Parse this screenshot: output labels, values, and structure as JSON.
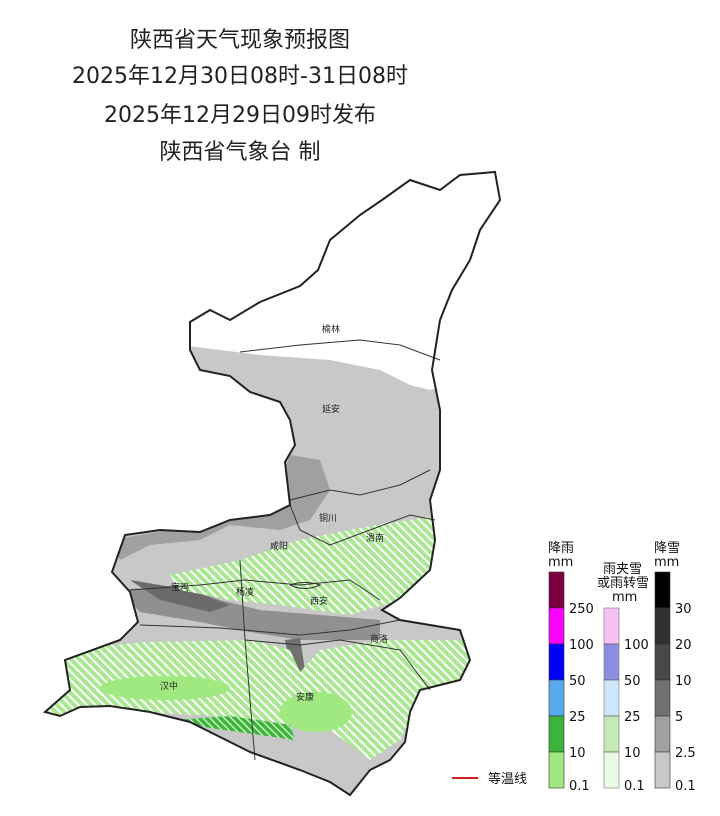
{
  "title": {
    "line1": "陕西省天气现象预报图",
    "line2": "2025年12月30日08时-31日08时",
    "line3": "2025年12月29日09时发布",
    "line4": "陕西省气象台 制"
  },
  "cities": [
    "榆林",
    "延安",
    "铜川",
    "咸阳",
    "渭南",
    "宝鸡",
    "杨凌",
    "西安",
    "商洛",
    "汉中",
    "安康"
  ],
  "legend": {
    "isotherm_label": "等温线",
    "isotherm_color": "#d42020",
    "rain": {
      "title1": "降雨",
      "title2": "mm",
      "ticks": [
        "250",
        "100",
        "50",
        "25",
        "10",
        "0.1"
      ],
      "colors": [
        "#7a0040",
        "#ff00ff",
        "#0000ff",
        "#5aaaf0",
        "#3cb43c",
        "#a0e880"
      ]
    },
    "sleet": {
      "title1": "雨夹雪",
      "title2": "或雨转雪",
      "title3": "mm",
      "ticks": [
        "100",
        "50",
        "25",
        "10",
        "0.1"
      ],
      "colors": [
        "#f0a0f0",
        "#5050d0",
        "#b4daf8",
        "#a8e090",
        "#e0f8d8"
      ]
    },
    "snow": {
      "title1": "降雪",
      "title2": "mm",
      "ticks": [
        "30",
        "20",
        "10",
        "5",
        "2.5",
        "0.1"
      ],
      "colors": [
        "#000000",
        "#303030",
        "#484848",
        "#707070",
        "#a0a0a0",
        "#c8c8c8"
      ]
    }
  }
}
